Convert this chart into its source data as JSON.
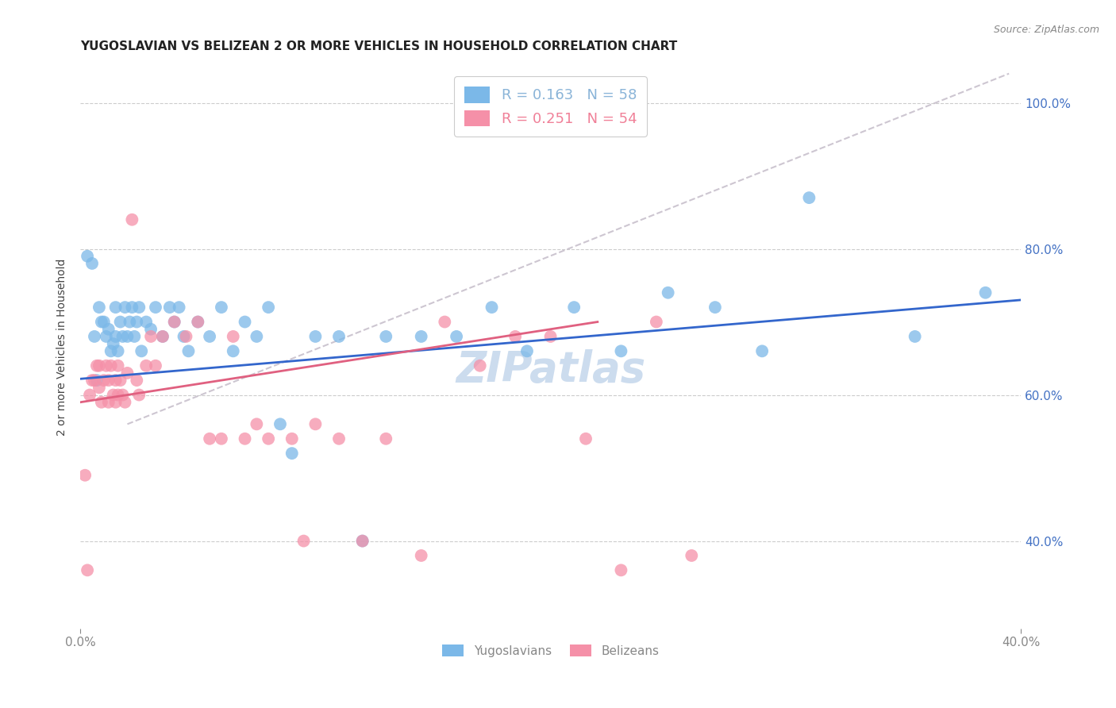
{
  "title": "YUGOSLAVIAN VS BELIZEAN 2 OR MORE VEHICLES IN HOUSEHOLD CORRELATION CHART",
  "source": "Source: ZipAtlas.com",
  "ylabel": "2 or more Vehicles in Household",
  "xlim": [
    0.0,
    0.4
  ],
  "ylim": [
    0.28,
    1.05
  ],
  "legend_entries": [
    {
      "label": "R = 0.163   N = 58",
      "color": "#8ab4d8"
    },
    {
      "label": "R = 0.251   N = 54",
      "color": "#f08098"
    }
  ],
  "watermark": "ZIPatlas",
  "yug_color": "#7bb8e8",
  "bel_color": "#f590a8",
  "trend_yug_color": "#3366cc",
  "trend_bel_color": "#e06080",
  "trend_diagonal_color": "#c8c0cc",
  "yug_R": 0.163,
  "yug_N": 58,
  "bel_R": 0.251,
  "bel_N": 54,
  "yug_points_x": [
    0.003,
    0.005,
    0.006,
    0.007,
    0.008,
    0.009,
    0.01,
    0.011,
    0.012,
    0.013,
    0.014,
    0.015,
    0.015,
    0.016,
    0.017,
    0.018,
    0.019,
    0.02,
    0.021,
    0.022,
    0.023,
    0.024,
    0.025,
    0.026,
    0.028,
    0.03,
    0.032,
    0.035,
    0.038,
    0.04,
    0.042,
    0.044,
    0.046,
    0.05,
    0.055,
    0.06,
    0.065,
    0.07,
    0.075,
    0.08,
    0.085,
    0.09,
    0.1,
    0.11,
    0.12,
    0.13,
    0.145,
    0.16,
    0.175,
    0.19,
    0.21,
    0.23,
    0.25,
    0.27,
    0.29,
    0.31,
    0.355,
    0.385
  ],
  "yug_points_y": [
    0.79,
    0.78,
    0.68,
    0.62,
    0.72,
    0.7,
    0.7,
    0.68,
    0.69,
    0.66,
    0.67,
    0.72,
    0.68,
    0.66,
    0.7,
    0.68,
    0.72,
    0.68,
    0.7,
    0.72,
    0.68,
    0.7,
    0.72,
    0.66,
    0.7,
    0.69,
    0.72,
    0.68,
    0.72,
    0.7,
    0.72,
    0.68,
    0.66,
    0.7,
    0.68,
    0.72,
    0.66,
    0.7,
    0.68,
    0.72,
    0.56,
    0.52,
    0.68,
    0.68,
    0.4,
    0.68,
    0.68,
    0.68,
    0.72,
    0.66,
    0.72,
    0.66,
    0.74,
    0.72,
    0.66,
    0.87,
    0.68,
    0.74
  ],
  "bel_points_x": [
    0.002,
    0.003,
    0.004,
    0.005,
    0.006,
    0.007,
    0.008,
    0.008,
    0.009,
    0.01,
    0.011,
    0.012,
    0.012,
    0.013,
    0.014,
    0.015,
    0.015,
    0.016,
    0.016,
    0.017,
    0.018,
    0.019,
    0.02,
    0.022,
    0.024,
    0.025,
    0.028,
    0.03,
    0.032,
    0.035,
    0.04,
    0.045,
    0.05,
    0.055,
    0.06,
    0.065,
    0.07,
    0.075,
    0.08,
    0.09,
    0.095,
    0.1,
    0.11,
    0.12,
    0.13,
    0.145,
    0.155,
    0.17,
    0.185,
    0.2,
    0.215,
    0.23,
    0.245,
    0.26
  ],
  "bel_points_y": [
    0.49,
    0.36,
    0.6,
    0.62,
    0.62,
    0.64,
    0.64,
    0.61,
    0.59,
    0.62,
    0.64,
    0.62,
    0.59,
    0.64,
    0.6,
    0.62,
    0.59,
    0.64,
    0.6,
    0.62,
    0.6,
    0.59,
    0.63,
    0.84,
    0.62,
    0.6,
    0.64,
    0.68,
    0.64,
    0.68,
    0.7,
    0.68,
    0.7,
    0.54,
    0.54,
    0.68,
    0.54,
    0.56,
    0.54,
    0.54,
    0.4,
    0.56,
    0.54,
    0.4,
    0.54,
    0.38,
    0.7,
    0.64,
    0.68,
    0.68,
    0.54,
    0.36,
    0.7,
    0.38
  ],
  "title_fontsize": 11,
  "axis_label_fontsize": 10,
  "tick_fontsize": 11,
  "legend_fontsize": 13,
  "watermark_fontsize": 38,
  "watermark_color": "#ccdcee",
  "background_color": "#ffffff",
  "grid_color": "#cccccc",
  "right_tick_color": "#4472c4",
  "bottom_tick_color": "#888888"
}
